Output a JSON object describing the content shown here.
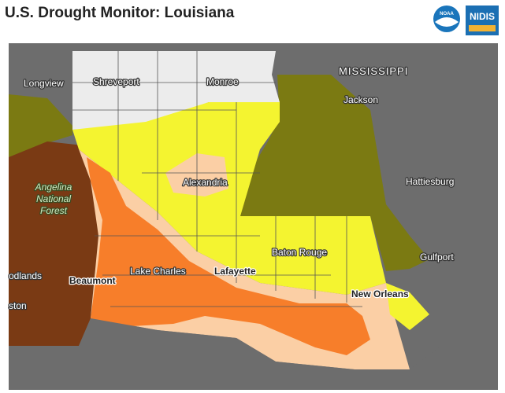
{
  "header": {
    "title": "U.S. Drought Monitor: Louisiana",
    "logos": [
      "NOAA",
      "NIDIS"
    ]
  },
  "map": {
    "labels": [
      "MISSISSIPPI",
      "Jackson",
      "Longview",
      "Shreveport",
      "Monroe",
      "Alexandria",
      "Angelina",
      "National",
      "Forest",
      "Hattiesburg",
      "Baton Rouge",
      "Gulfport",
      "Lake Charles",
      "Lafayette",
      "Beaumont",
      "odlands",
      "New Orleans",
      "ston"
    ]
  }
}
